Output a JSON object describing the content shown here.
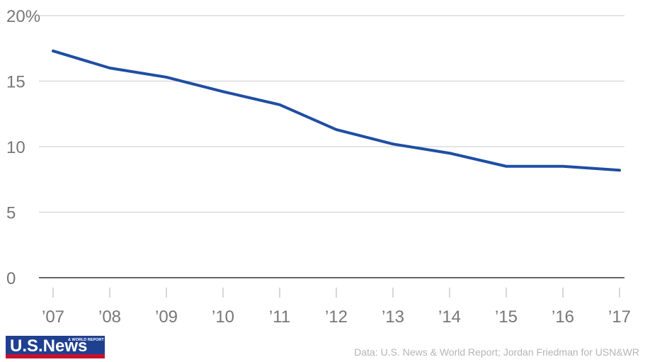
{
  "chart_data": {
    "type": "line",
    "title": "",
    "xlabel": "",
    "ylabel": "",
    "categories": [
      "’07",
      "’08",
      "’09",
      "’10",
      "’11",
      "’12",
      "’13",
      "’14",
      "’15",
      "’16",
      "’17"
    ],
    "series": [
      {
        "values": [
          17.3,
          16.0,
          15.3,
          14.2,
          13.2,
          11.3,
          10.2,
          9.5,
          8.5,
          8.5,
          8.2
        ],
        "color": "#1f4ea3"
      }
    ],
    "yticks": [
      {
        "value": 0,
        "label": "0"
      },
      {
        "value": 5,
        "label": "5"
      },
      {
        "value": 10,
        "label": "10"
      },
      {
        "value": 15,
        "label": "15"
      },
      {
        "value": 20,
        "label": "20%"
      }
    ],
    "ylim": [
      0,
      20
    ],
    "grid": true,
    "legend": "none"
  },
  "footer": {
    "source": "Data: U.S. News & World Report; Jordan Friedman for USN&WR"
  },
  "logo": {
    "text": "U.S.News",
    "subtext": "& WORLD REPORT",
    "colors": {
      "primary": "#1f3f91",
      "accent": "#c8102e"
    }
  }
}
